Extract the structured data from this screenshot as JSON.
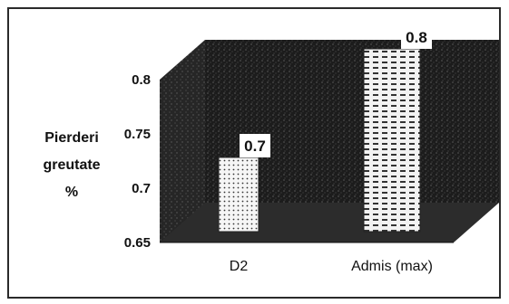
{
  "chart_data": {
    "type": "bar",
    "style": "3d",
    "categories": [
      "D2",
      "Admis (max)"
    ],
    "series": [
      {
        "values": [
          0.7,
          0.8
        ]
      }
    ],
    "data_labels": [
      "0.7",
      "0.8"
    ],
    "title": "",
    "xlabel": "",
    "ylabel_lines": [
      "Pierderi",
      "greutate",
      "%"
    ],
    "ylim": [
      0.65,
      0.8
    ],
    "yticks": [
      "0.8",
      "0.75",
      "0.7",
      "0.65"
    ],
    "grid": false,
    "legend": false,
    "colors": {
      "wall": "#1f1f1f",
      "floor": "#2c2c2c",
      "bar_fill": "#f4f4f4",
      "frame": "#2a2a2a"
    },
    "bar_patterns": [
      "dots",
      "dashes"
    ]
  }
}
